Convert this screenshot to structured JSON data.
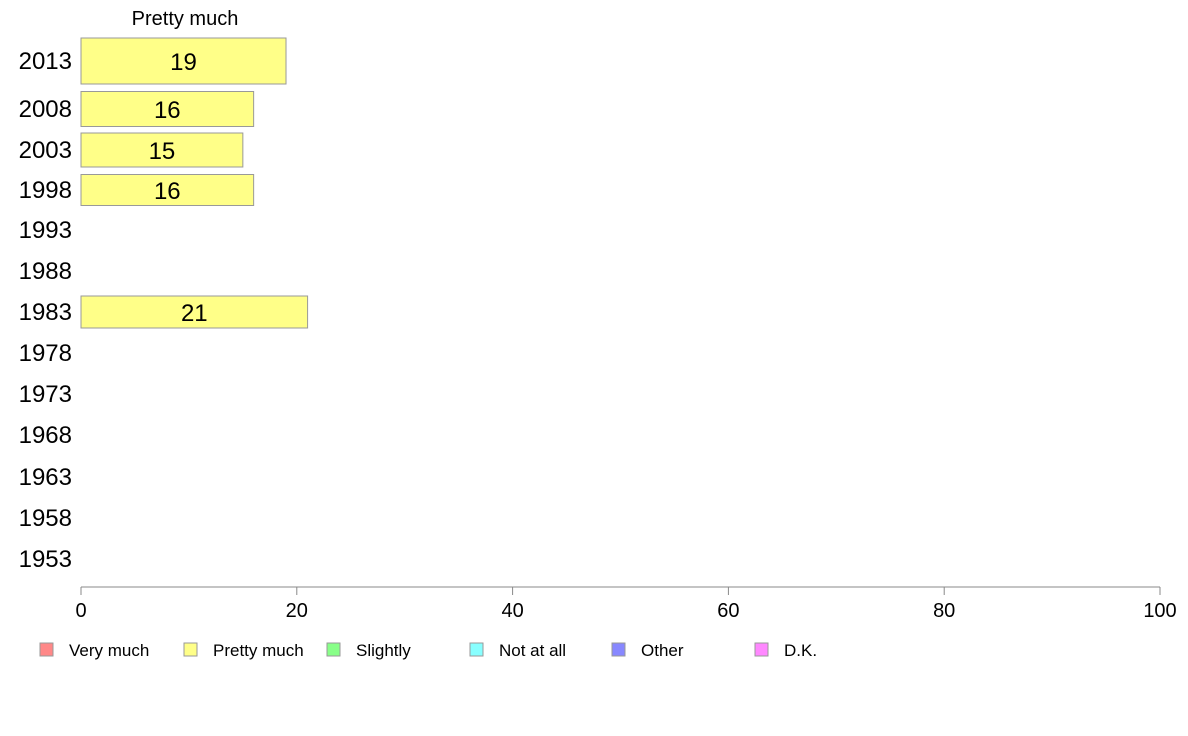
{
  "chart_data": {
    "type": "bar",
    "orientation": "horizontal",
    "series_title": "Pretty much",
    "categories": [
      "2013",
      "2008",
      "2003",
      "1998",
      "1993",
      "1988",
      "1983",
      "1978",
      "1973",
      "1968",
      "1963",
      "1958",
      "1953"
    ],
    "series": [
      {
        "name": "Pretty much",
        "values": [
          19,
          16,
          15,
          16,
          null,
          null,
          21,
          null,
          null,
          null,
          null,
          null,
          null
        ]
      }
    ],
    "xlim": [
      0,
      100
    ],
    "xticks": [
      "0",
      "20",
      "40",
      "60",
      "80",
      "100"
    ],
    "bar_color": "#ffff88",
    "bar_edge_color": "#999999",
    "grid": false,
    "legend_position": "bottom",
    "legend": [
      {
        "label": "Very much",
        "color": "#ff8888"
      },
      {
        "label": "Pretty much",
        "color": "#ffff88"
      },
      {
        "label": "Slightly",
        "color": "#88ff88"
      },
      {
        "label": "Not at all",
        "color": "#88ffff"
      },
      {
        "label": "Other",
        "color": "#8888ff"
      },
      {
        "label": "D.K.",
        "color": "#ff88ff"
      }
    ]
  }
}
